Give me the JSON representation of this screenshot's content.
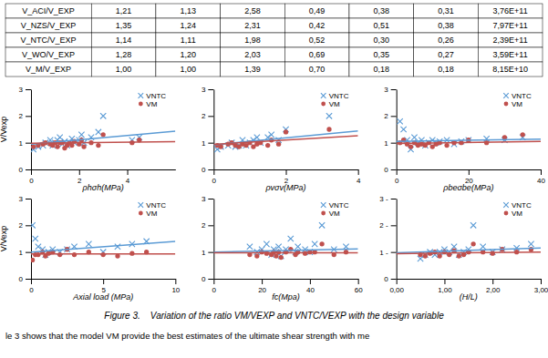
{
  "chart_data": [
    {
      "type": "table",
      "rows": [
        [
          "V_ACI/V_EXP",
          "1,21",
          "1,13",
          "2,58",
          "0,49",
          "0,38",
          "0,31",
          "3,76E+11"
        ],
        [
          "V_NZS/V_EXP",
          "1,35",
          "1,24",
          "2,31",
          "0,42",
          "0,51",
          "0,38",
          "7,97E+11"
        ],
        [
          "V_NTC/V_EXP",
          "1,14",
          "1,11",
          "1,98",
          "0,52",
          "0,30",
          "0,26",
          "2,39E+11"
        ],
        [
          "V_WO/V_EXP",
          "1,28",
          "1,20",
          "2,03",
          "0,69",
          "0,35",
          "0,27",
          "3,59E+11"
        ],
        [
          "V_M/V_EXP",
          "1,00",
          "1,00",
          "1,39",
          "0,70",
          "0,18",
          "0,18",
          "8,15E+10"
        ]
      ]
    },
    {
      "type": "scatter",
      "xlabel": "ρhσh(MPa)",
      "ylabel": "V/Vexp",
      "xlim": [
        0,
        6
      ],
      "ylim": [
        0,
        3
      ],
      "xticks": [
        0,
        2,
        4
      ],
      "yticks": [
        0,
        1,
        2,
        3
      ],
      "legend": "upper right",
      "grid": false,
      "series": [
        {
          "name": "VNTC",
          "type": "scatter",
          "marker": "x",
          "color": "#5B9BD5",
          "x": [
            0.1,
            0.3,
            0.5,
            0.6,
            0.8,
            0.9,
            1.0,
            1.1,
            1.2,
            1.3,
            1.4,
            1.5,
            1.6,
            1.7,
            1.8,
            2.0,
            2.1,
            2.2,
            2.5,
            2.8,
            3.0,
            4.2,
            4.5
          ],
          "values": [
            0.75,
            0.85,
            0.9,
            1.0,
            1.1,
            0.9,
            1.0,
            1.1,
            1.2,
            0.95,
            1.05,
            0.9,
            1.0,
            1.15,
            1.0,
            1.1,
            1.3,
            1.0,
            1.2,
            1.4,
            2.0,
            1.1,
            1.2
          ]
        },
        {
          "name": "VM",
          "type": "scatter",
          "marker": "circle",
          "color": "#C0504D",
          "x": [
            0.1,
            0.3,
            0.5,
            0.6,
            0.8,
            0.9,
            1.0,
            1.1,
            1.2,
            1.3,
            1.4,
            1.5,
            1.6,
            1.7,
            1.8,
            2.0,
            2.1,
            2.2,
            2.5,
            2.8,
            3.0,
            4.2,
            4.5
          ],
          "values": [
            0.85,
            0.9,
            0.95,
            1.0,
            0.95,
            0.9,
            1.0,
            0.85,
            1.0,
            1.0,
            0.8,
            0.9,
            1.0,
            0.9,
            1.05,
            0.95,
            1.1,
            0.85,
            1.0,
            0.9,
            1.3,
            1.0,
            1.1
          ]
        },
        {
          "type": "line",
          "color": "#5B9BD5",
          "x": [
            0,
            6
          ],
          "values": [
            0.95,
            1.43
          ]
        },
        {
          "type": "line",
          "color": "#C0504D",
          "x": [
            0,
            6
          ],
          "values": [
            0.98,
            1.04
          ]
        }
      ]
    },
    {
      "type": "scatter",
      "xlabel": "ρvσv(MPa)",
      "xlim": [
        0,
        4
      ],
      "ylim": [
        0,
        3
      ],
      "xticks": [
        0,
        2,
        4
      ],
      "yticks": [
        0,
        1,
        2,
        3
      ],
      "legend": "upper right",
      "grid": false,
      "series": [
        {
          "name": "VNTC",
          "type": "scatter",
          "marker": "x",
          "color": "#5B9BD5",
          "x": [
            0.1,
            0.2,
            0.4,
            0.5,
            0.6,
            0.7,
            0.8,
            0.9,
            1.0,
            1.1,
            1.2,
            1.3,
            1.5,
            1.6,
            1.8,
            2.0,
            3.2
          ],
          "values": [
            0.75,
            0.85,
            0.9,
            1.0,
            0.85,
            0.9,
            1.1,
            0.9,
            1.0,
            1.1,
            1.2,
            1.0,
            1.2,
            1.3,
            1.1,
            1.5,
            2.0
          ]
        },
        {
          "name": "VM",
          "type": "scatter",
          "marker": "circle",
          "color": "#C0504D",
          "x": [
            0.1,
            0.2,
            0.4,
            0.5,
            0.6,
            0.7,
            0.8,
            0.9,
            1.0,
            1.1,
            1.2,
            1.3,
            1.5,
            1.6,
            1.8,
            2.0,
            3.2
          ],
          "values": [
            0.9,
            0.85,
            0.95,
            1.0,
            0.9,
            0.85,
            0.95,
            0.9,
            1.0,
            0.85,
            0.95,
            1.0,
            0.9,
            1.1,
            0.95,
            1.4,
            1.5
          ]
        },
        {
          "type": "line",
          "color": "#5B9BD5",
          "x": [
            0,
            4
          ],
          "values": [
            0.92,
            1.44
          ]
        },
        {
          "type": "line",
          "color": "#C0504D",
          "x": [
            0,
            4
          ],
          "values": [
            0.94,
            1.26
          ]
        }
      ]
    },
    {
      "type": "scatter",
      "xlabel": "ρbeσbe(MPa)",
      "xlim": [
        0,
        40
      ],
      "ylim": [
        0,
        3
      ],
      "xticks": [
        0,
        20,
        40
      ],
      "yticks": [
        0,
        1,
        2,
        3
      ],
      "legend": "upper right",
      "grid": false,
      "series": [
        {
          "name": "VNTC",
          "type": "scatter",
          "marker": "x",
          "color": "#5B9BD5",
          "x": [
            1,
            2,
            3,
            4,
            5,
            6,
            7,
            8,
            9,
            10,
            11,
            12,
            14,
            16,
            18,
            20,
            25,
            30,
            35
          ],
          "values": [
            1.8,
            1.5,
            1.1,
            0.75,
            1.2,
            1.0,
            1.1,
            0.9,
            1.0,
            1.1,
            1.0,
            1.05,
            1.1,
            0.95,
            1.05,
            1.1,
            1.15,
            1.1,
            1.2
          ]
        },
        {
          "name": "VM",
          "type": "scatter",
          "marker": "circle",
          "color": "#C0504D",
          "x": [
            1,
            2,
            3,
            4,
            5,
            6,
            7,
            8,
            9,
            10,
            11,
            12,
            14,
            16,
            18,
            20,
            25,
            30,
            35
          ],
          "values": [
            1.0,
            1.1,
            0.95,
            0.85,
            1.0,
            0.9,
            0.95,
            0.9,
            1.0,
            0.85,
            0.95,
            1.0,
            0.9,
            1.0,
            1.0,
            1.1,
            1.0,
            1.2,
            1.3
          ]
        },
        {
          "type": "line",
          "color": "#5B9BD5",
          "x": [
            0,
            40
          ],
          "values": [
            1.05,
            1.13
          ]
        },
        {
          "type": "line",
          "color": "#C0504D",
          "x": [
            0,
            40
          ],
          "values": [
            0.97,
            1.05
          ]
        }
      ]
    },
    {
      "type": "scatter",
      "xlabel": "Axial load (MPa)",
      "ylabel": "V/Vexp",
      "xlim": [
        0,
        10
      ],
      "ylim": [
        0,
        3
      ],
      "xticks": [
        0,
        5,
        10
      ],
      "yticks": [
        0,
        1,
        2,
        3
      ],
      "legend": "upper right",
      "grid": false,
      "series": [
        {
          "name": "VNTC",
          "type": "scatter",
          "marker": "x",
          "color": "#5B9BD5",
          "x": [
            0.1,
            0.3,
            0.5,
            0.8,
            1.0,
            1.2,
            1.5,
            2.0,
            2.5,
            3.0,
            4.0,
            5.0,
            6.0,
            7.0,
            8.0
          ],
          "values": [
            2.0,
            1.5,
            1.2,
            1.1,
            0.9,
            1.0,
            1.1,
            1.0,
            1.1,
            1.2,
            1.3,
            1.0,
            1.2,
            1.3,
            1.4
          ]
        },
        {
          "name": "VM",
          "type": "scatter",
          "marker": "circle",
          "color": "#C0504D",
          "x": [
            0.1,
            0.3,
            0.5,
            0.8,
            1.0,
            1.2,
            1.5,
            2.0,
            2.5,
            3.0,
            4.0,
            5.0,
            6.0,
            7.0,
            8.0
          ],
          "values": [
            0.7,
            0.9,
            0.9,
            1.0,
            0.85,
            0.95,
            1.0,
            0.9,
            1.1,
            0.9,
            1.0,
            0.9,
            0.85,
            0.95,
            1.0
          ]
        },
        {
          "type": "line",
          "color": "#5B9BD5",
          "x": [
            0,
            10
          ],
          "values": [
            1.0,
            1.4
          ]
        },
        {
          "type": "line",
          "color": "#C0504D",
          "x": [
            0,
            10
          ],
          "values": [
            0.93,
            0.93
          ]
        }
      ]
    },
    {
      "type": "scatter",
      "xlabel": "fc(Mpa)",
      "xlim": [
        0,
        60
      ],
      "ylim": [
        0,
        3
      ],
      "xticks": [
        0,
        20,
        40,
        60
      ],
      "yticks": [
        0,
        1,
        2,
        3
      ],
      "legend": "upper right",
      "grid": false,
      "series": [
        {
          "name": "VNTC",
          "type": "scatter",
          "marker": "x",
          "color": "#5B9BD5",
          "x": [
            15,
            18,
            20,
            22,
            24,
            25,
            26,
            27,
            28,
            30,
            32,
            34,
            35,
            38,
            40,
            42,
            45,
            50,
            55
          ],
          "values": [
            1.2,
            1.0,
            1.1,
            1.3,
            0.9,
            1.1,
            1.0,
            1.2,
            0.85,
            1.1,
            1.5,
            1.0,
            1.2,
            1.1,
            1.0,
            1.3,
            2.0,
            1.1,
            1.2
          ]
        },
        {
          "name": "VM",
          "type": "scatter",
          "marker": "circle",
          "color": "#C0504D",
          "x": [
            15,
            18,
            20,
            22,
            24,
            25,
            26,
            27,
            28,
            30,
            32,
            34,
            35,
            38,
            40,
            42,
            45,
            50,
            55
          ],
          "values": [
            0.9,
            0.85,
            1.0,
            0.95,
            0.9,
            1.0,
            0.85,
            1.0,
            0.8,
            1.0,
            1.1,
            0.9,
            1.0,
            0.95,
            1.0,
            1.0,
            1.3,
            0.9,
            1.0
          ]
        },
        {
          "type": "line",
          "color": "#5B9BD5",
          "x": [
            0,
            60
          ],
          "values": [
            1.0,
            1.12
          ]
        },
        {
          "type": "line",
          "color": "#C0504D",
          "x": [
            0,
            60
          ],
          "values": [
            0.97,
            0.97
          ]
        }
      ]
    },
    {
      "type": "scatter",
      "xlabel": "(H/L)",
      "xlim": [
        0,
        3
      ],
      "ylim": [
        0,
        3
      ],
      "xticks": [
        {
          "value": 0,
          "label": "0,00"
        },
        {
          "value": 1,
          "label": "1,00"
        },
        {
          "value": 2,
          "label": "2,00"
        },
        {
          "value": 3,
          "label": "3,00"
        }
      ],
      "yticks": [
        0,
        {
          "value": 1,
          "label": "1 -"
        },
        {
          "value": 2,
          "label": "2 -"
        },
        {
          "value": 3,
          "label": "3 -"
        }
      ],
      "legend": "upper right",
      "grid": false,
      "series": [
        {
          "name": "VNTC",
          "type": "scatter",
          "marker": "x",
          "color": "#5B9BD5",
          "x": [
            0.5,
            0.6,
            0.7,
            0.8,
            0.9,
            1.0,
            1.1,
            1.2,
            1.3,
            1.4,
            1.5,
            1.6,
            1.8,
            2.0,
            2.2,
            2.5,
            2.8
          ],
          "values": [
            0.75,
            0.9,
            1.0,
            0.9,
            1.0,
            1.1,
            1.0,
            1.2,
            0.9,
            1.0,
            1.1,
            2.0,
            1.2,
            1.0,
            1.1,
            1.15,
            1.3
          ]
        },
        {
          "name": "VM",
          "type": "scatter",
          "marker": "circle",
          "color": "#C0504D",
          "x": [
            0.5,
            0.6,
            0.7,
            0.8,
            0.9,
            1.0,
            1.1,
            1.2,
            1.3,
            1.4,
            1.5,
            1.6,
            1.8,
            2.0,
            2.2,
            2.5,
            2.8
          ],
          "values": [
            0.9,
            0.85,
            0.95,
            1.0,
            0.85,
            1.0,
            0.9,
            1.05,
            0.85,
            0.9,
            1.0,
            1.3,
            1.0,
            0.95,
            1.1,
            1.0,
            1.1
          ]
        },
        {
          "type": "line",
          "color": "#5B9BD5",
          "x": [
            0,
            3
          ],
          "values": [
            0.97,
            1.15
          ]
        },
        {
          "type": "line",
          "color": "#C0504D",
          "x": [
            0,
            3
          ],
          "values": [
            0.94,
            1.0
          ]
        }
      ]
    }
  ],
  "caption": "Figure 3.    Variation of the ratio VM/VEXP and VNTC/VEXP with the design variable",
  "text": "le 3 shows that the model VM provide the best estimates of the ultimate shear strength with me"
}
